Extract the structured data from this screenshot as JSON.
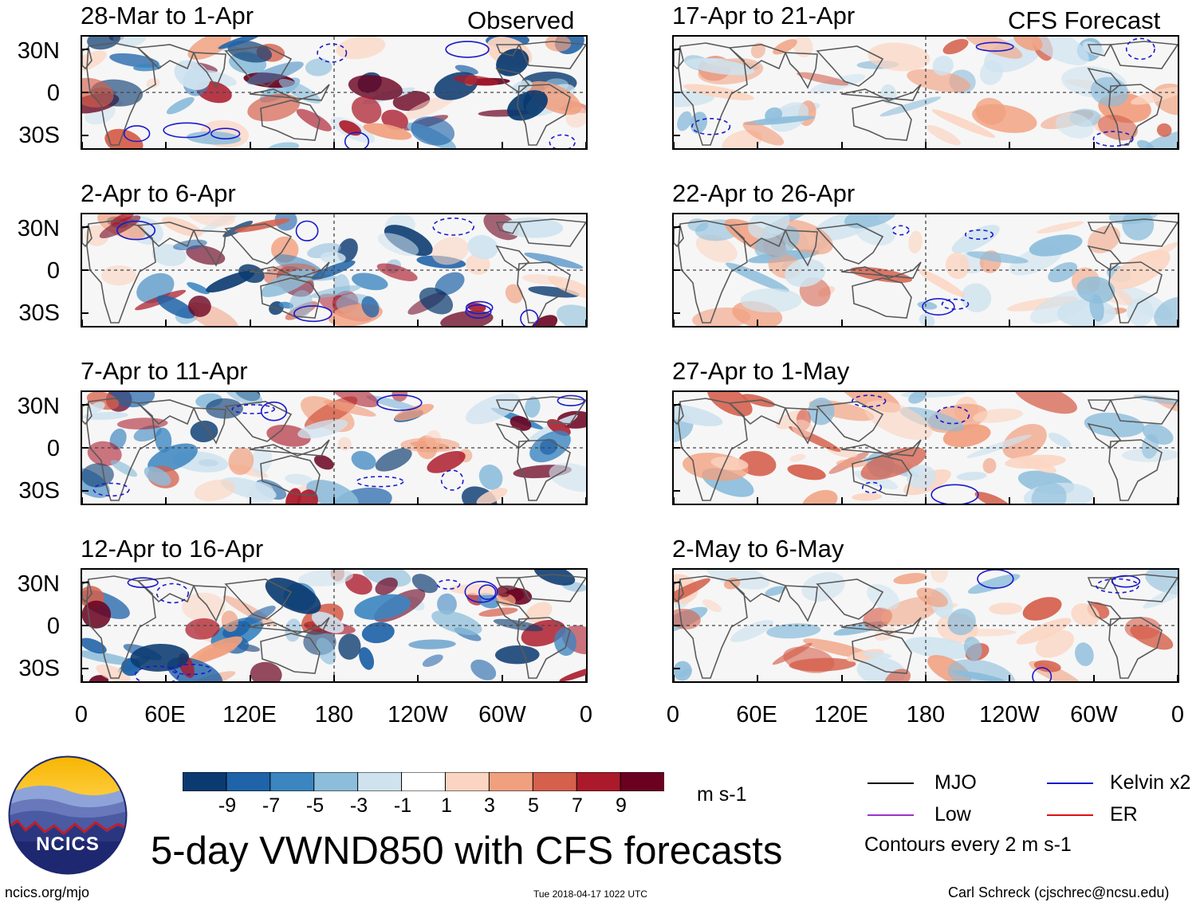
{
  "header": {
    "left_label": "Observed",
    "right_label": "CFS Forecast"
  },
  "observed_panels": [
    {
      "period": "28-Mar to 1-Apr"
    },
    {
      "period": "2-Apr to 6-Apr"
    },
    {
      "period": "7-Apr to 11-Apr"
    },
    {
      "period": "12-Apr to 16-Apr"
    }
  ],
  "forecast_panels": [
    {
      "period": "17-Apr to 21-Apr"
    },
    {
      "period": "22-Apr to 26-Apr"
    },
    {
      "period": "27-Apr to 1-May"
    },
    {
      "period": "2-May to 6-May"
    }
  ],
  "axes": {
    "lat_labels": [
      "30N",
      "0",
      "30S"
    ],
    "lon_labels": [
      "0",
      "60E",
      "120E",
      "180",
      "120W",
      "60W",
      "0"
    ]
  },
  "colorbar": {
    "tick_labels": [
      "-9",
      "-7",
      "-5",
      "-3",
      "-1",
      "1",
      "3",
      "5",
      "7",
      "9"
    ],
    "colors": [
      "#0a3a70",
      "#1f63a8",
      "#3b85c0",
      "#8cbddb",
      "#cfe3ef",
      "#ffffff",
      "#fbd5c2",
      "#f1a07f",
      "#d5604c",
      "#ab1a2b",
      "#6a0120"
    ],
    "units": "m s-1"
  },
  "legend": {
    "items": [
      {
        "label": "MJO",
        "color": "#000000"
      },
      {
        "label": "Kelvin x2",
        "color": "#1a1acc"
      },
      {
        "label": "Low",
        "color": "#9933cc"
      },
      {
        "label": "ER",
        "color": "#dd1111"
      }
    ],
    "contour_note": "Contours every 2 m s-1"
  },
  "logo": {
    "text": "NCICS"
  },
  "title": "5-day VWND850 with CFS forecasts",
  "footer": {
    "url": "ncics.org/mjo",
    "timestamp": "Tue 2018-04-17 1022 UTC",
    "author": "Carl Schreck (cjschrec@ncsu.edu)"
  }
}
